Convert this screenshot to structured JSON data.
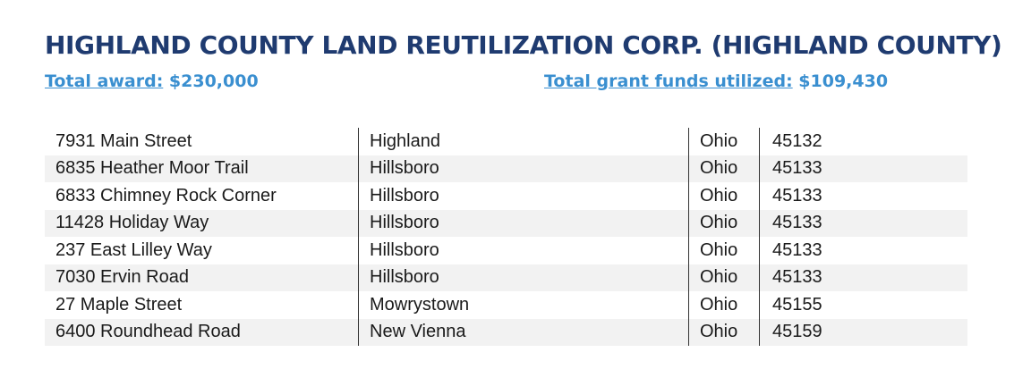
{
  "title": "HIGHLAND COUNTY LAND REUTILIZATION CORP. (HIGHLAND COUNTY)",
  "total_award": {
    "label": "Total award:",
    "value": "$230,000"
  },
  "grant_utilized": {
    "label": "Total grant funds utilized:",
    "value": "$109,430"
  },
  "properties": [
    {
      "address": "7931 Main Street",
      "city": "Highland",
      "state": "Ohio",
      "zip": "45132"
    },
    {
      "address": "6835 Heather Moor Trail",
      "city": "Hillsboro",
      "state": "Ohio",
      "zip": "45133"
    },
    {
      "address": "6833 Chimney Rock Corner",
      "city": "Hillsboro",
      "state": "Ohio",
      "zip": "45133"
    },
    {
      "address": "11428 Holiday Way",
      "city": "Hillsboro",
      "state": "Ohio",
      "zip": "45133"
    },
    {
      "address": "237 East Lilley Way",
      "city": "Hillsboro",
      "state": "Ohio",
      "zip": "45133"
    },
    {
      "address": "7030 Ervin Road",
      "city": "Hillsboro",
      "state": "Ohio",
      "zip": "45133"
    },
    {
      "address": "27 Maple Street",
      "city": "Mowrystown",
      "state": "Ohio",
      "zip": "45155"
    },
    {
      "address": "6400 Roundhead Road",
      "city": "New Vienna",
      "state": "Ohio",
      "zip": "45159"
    }
  ]
}
